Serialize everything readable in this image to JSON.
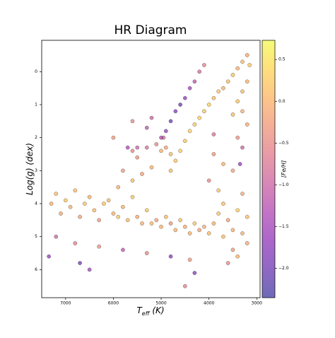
{
  "chart_data": {
    "type": "scatter",
    "title": "HR Diagram",
    "xlabel": {
      "main": "T",
      "sub": "eff",
      "rest": " (K)"
    },
    "ylabel": "Log(g) (dex)",
    "colorbar_label": "[Fe/H]",
    "xlim": [
      7500,
      2930
    ],
    "ylim": [
      -0.95,
      6.85
    ],
    "xticks": [
      7000,
      6000,
      5000,
      4000,
      3000
    ],
    "yticks": [
      0,
      1,
      2,
      3,
      4,
      5,
      6
    ],
    "clim": [
      -2.35,
      0.73
    ],
    "cticks": [
      0.5,
      {
        "value": 0,
        "label": "0.0"
      },
      {
        "value": -0.5,
        "label": "−0.5"
      },
      {
        "value": -1,
        "label": "−1.0"
      },
      {
        "value": -1.5,
        "label": "−1.5"
      },
      {
        "value": -2,
        "label": "−2.0"
      }
    ],
    "colormap": [
      "#0d0887",
      "#46039f",
      "#7201a8",
      "#9c179e",
      "#bd3786",
      "#d8576b",
      "#ed7953",
      "#fb9f3a",
      "#fdca26",
      "#f0f921"
    ],
    "series": [
      {
        "x": [
          7300,
          7200,
          7100,
          7000,
          6900,
          6800,
          6700,
          6600,
          6500,
          6400,
          6300,
          6200,
          6100,
          6000,
          5900,
          5800,
          5700,
          5600,
          5500,
          5400,
          5300,
          5200,
          5100,
          5000,
          4900,
          4800,
          4700,
          4600,
          4500,
          4400,
          4300,
          4200,
          4100,
          4000,
          7200,
          6800,
          6300,
          5800,
          5300,
          4800,
          4400,
          7350,
          6700,
          3900,
          3800,
          3700,
          3600,
          3500,
          3400,
          3300,
          3200,
          3700,
          3500,
          3400,
          3600,
          3800,
          3300,
          3200,
          5900,
          5600,
          5400,
          5200,
          5500,
          5800,
          5300,
          5700,
          5500,
          5600,
          5000,
          4900,
          4800,
          5100,
          4950,
          4800,
          4700,
          4600,
          4500,
          4400,
          4300,
          4200,
          4100,
          4000,
          3900,
          3800,
          3700,
          3600,
          3500,
          3400,
          3300,
          3200,
          3150,
          3200,
          3300,
          3400,
          3300,
          3200,
          3500,
          4800,
          4700,
          4900,
          4600,
          4500,
          4400,
          4300,
          4200,
          4100,
          5000,
          5200,
          3400,
          3350,
          3300,
          3500,
          3700,
          3900,
          4000,
          5600,
          5300,
          6000,
          4500,
          4300,
          6500,
          3900
        ],
        "values": [
          4.0,
          3.7,
          4.3,
          3.9,
          4.1,
          3.6,
          4.4,
          4.0,
          3.8,
          4.2,
          4.5,
          4.0,
          3.9,
          4.3,
          4.4,
          4.1,
          4.5,
          3.8,
          4.4,
          4.6,
          4.2,
          4.6,
          4.5,
          4.7,
          4.4,
          4.6,
          4.8,
          4.5,
          4.7,
          4.9,
          4.6,
          4.8,
          4.7,
          4.9,
          5.0,
          5.2,
          5.3,
          5.4,
          5.5,
          5.6,
          5.7,
          5.6,
          5.8,
          4.6,
          4.3,
          4.0,
          4.5,
          4.8,
          4.2,
          4.9,
          5.2,
          5.0,
          5.4,
          5.6,
          5.8,
          3.6,
          3.7,
          4.4,
          3.5,
          3.3,
          3.1,
          2.9,
          2.6,
          3.0,
          2.3,
          2.3,
          2.3,
          2.4,
          2.4,
          2.3,
          2.5,
          2.2,
          2.0,
          3.0,
          2.7,
          2.4,
          2.1,
          1.8,
          1.6,
          1.4,
          1.2,
          1.0,
          0.8,
          0.6,
          0.5,
          0.3,
          0.1,
          -0.1,
          -0.3,
          -0.5,
          -0.2,
          0.3,
          0.6,
          0.9,
          1.2,
          1.6,
          1.3,
          1.5,
          1.2,
          1.8,
          1.0,
          0.8,
          0.5,
          0.3,
          0.0,
          -0.2,
          2.0,
          1.4,
          2.0,
          2.8,
          2.3,
          3.0,
          2.8,
          2.5,
          3.3,
          1.5,
          1.7,
          2.0,
          6.5,
          6.1,
          6.0,
          1.9
        ],
        "colors": [
          0.0,
          0.1,
          -0.1,
          0.2,
          0.0,
          0.1,
          -0.2,
          0.2,
          0.0,
          0.1,
          -0.3,
          0.2,
          0.1,
          0.0,
          0.2,
          0.0,
          0.1,
          0.2,
          -0.1,
          0.0,
          0.2,
          0.1,
          -0.2,
          0.0,
          0.1,
          -0.3,
          0.0,
          0.1,
          -0.1,
          0.0,
          0.2,
          -0.2,
          0.0,
          0.1,
          -1.0,
          -0.6,
          -0.4,
          -1.2,
          -0.5,
          -1.8,
          -0.3,
          -1.6,
          -2.0,
          0.0,
          0.2,
          0.1,
          -0.2,
          0.0,
          0.3,
          0.0,
          -0.1,
          0.1,
          -0.3,
          0.0,
          -0.5,
          0.2,
          -0.1,
          0.1,
          0.0,
          0.1,
          -0.2,
          0.0,
          -0.4,
          -0.3,
          -0.8,
          -1.4,
          -1.0,
          -0.5,
          0.0,
          -0.2,
          0.1,
          -0.5,
          -0.8,
          0.1,
          0.2,
          0.3,
          0.2,
          0.3,
          0.2,
          0.3,
          0.2,
          0.3,
          0.1,
          0.2,
          0.0,
          0.1,
          0.2,
          0.0,
          0.1,
          -0.1,
          0.2,
          0.0,
          0.1,
          0.2,
          0.0,
          -0.1,
          0.1,
          -2.0,
          -1.8,
          -1.6,
          -2.1,
          -1.7,
          -1.5,
          -1.2,
          -0.9,
          -0.6,
          -1.3,
          -1.0,
          -0.4,
          -1.6,
          -1.0,
          -0.2,
          0.0,
          -0.3,
          -0.5,
          -0.5,
          -1.2,
          -0.3,
          -0.6,
          -1.8,
          -1.5,
          -0.8
        ]
      }
    ]
  }
}
